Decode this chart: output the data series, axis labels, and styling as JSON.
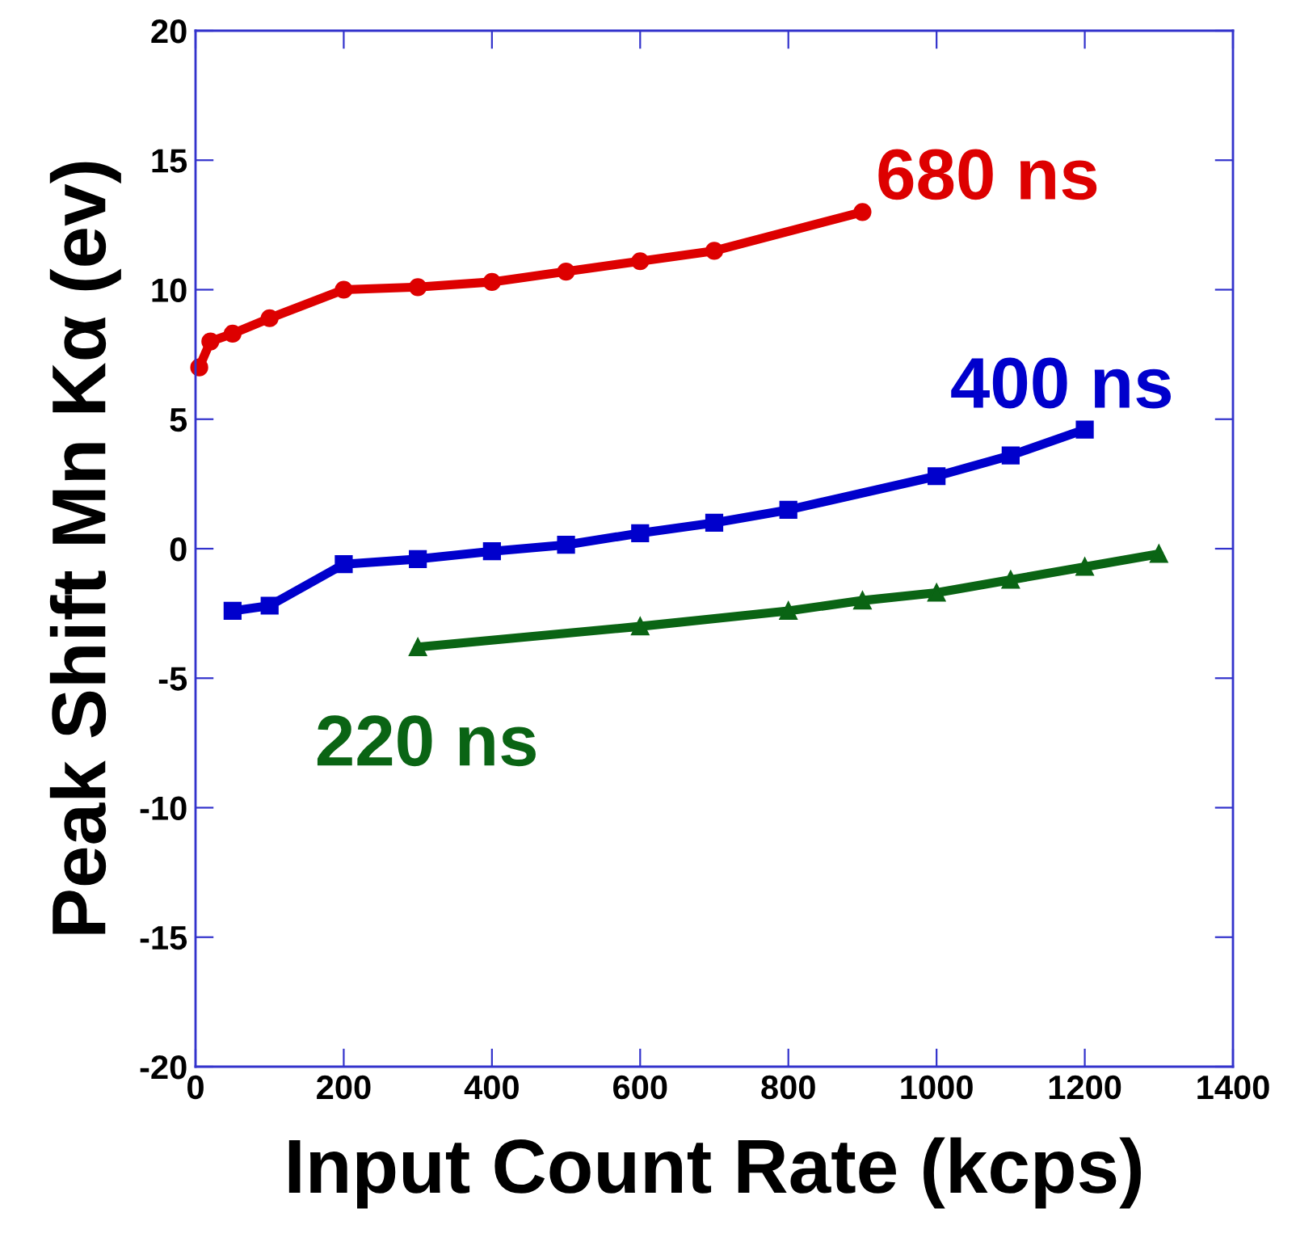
{
  "chart_data": {
    "type": "line",
    "xlabel": "Input Count Rate (kcps)",
    "ylabel": "Peak Shift Mn Kα (ev)",
    "xlim": [
      0,
      1400
    ],
    "xticks": [
      0,
      200,
      400,
      600,
      800,
      1000,
      1200,
      1400
    ],
    "ylim": [
      -20,
      20
    ],
    "yticks": [
      -20,
      -15,
      -10,
      -5,
      0,
      5,
      10,
      15,
      20
    ],
    "grid": false,
    "legend": false,
    "series": [
      {
        "name": "680 ns",
        "color": "#dd0000",
        "marker": "circle",
        "x": [
          5,
          20,
          50,
          100,
          200,
          300,
          400,
          500,
          600,
          700,
          900
        ],
        "values": [
          7,
          8,
          8.3,
          8.9,
          10,
          10.1,
          10.3,
          10.7,
          11.1,
          11.5,
          13
        ]
      },
      {
        "name": "400 ns",
        "color": "#0000cc",
        "marker": "square",
        "x": [
          50,
          100,
          200,
          300,
          400,
          500,
          600,
          700,
          800,
          1000,
          1100,
          1200
        ],
        "values": [
          -2.4,
          -2.2,
          -0.6,
          -0.4,
          -0.1,
          0.15,
          0.6,
          1.0,
          1.5,
          2.8,
          3.6,
          4.6
        ]
      },
      {
        "name": "220 ns",
        "color": "#0a6414",
        "marker": "triangle",
        "x": [
          300,
          600,
          800,
          900,
          1000,
          1100,
          1200,
          1300
        ],
        "values": [
          -3.8,
          -3.0,
          -2.4,
          -2.0,
          -1.7,
          -1.2,
          -0.7,
          -0.2
        ]
      }
    ]
  }
}
